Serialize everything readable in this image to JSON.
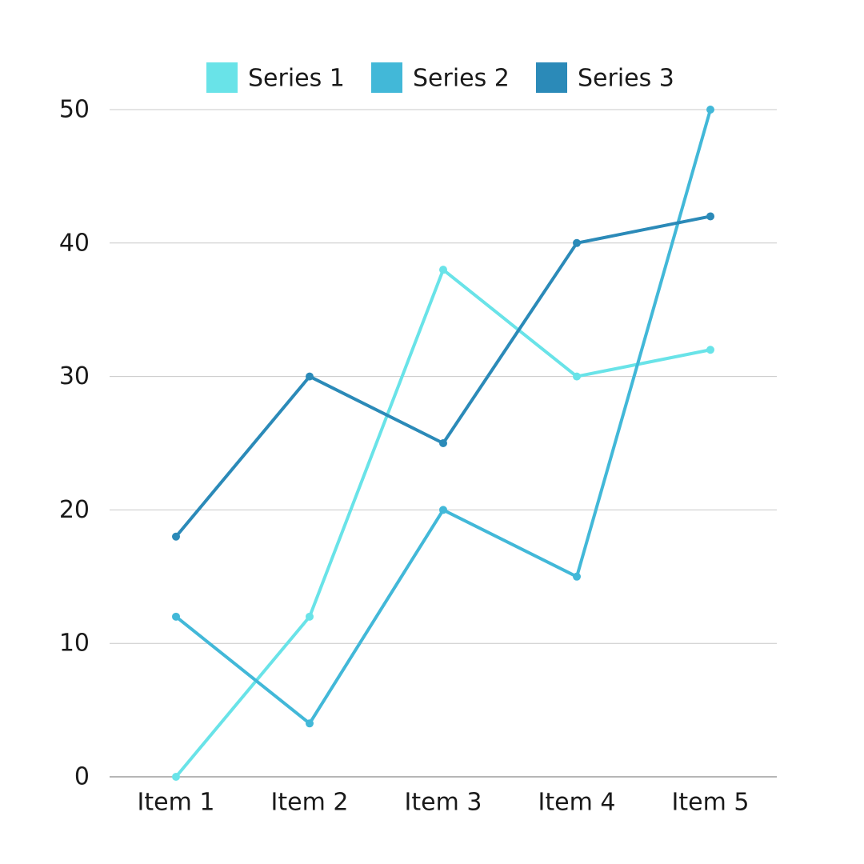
{
  "chart_data": {
    "type": "line",
    "categories": [
      "Item 1",
      "Item 2",
      "Item 3",
      "Item 4",
      "Item 5"
    ],
    "series": [
      {
        "name": "Series 1",
        "color": "#69e3e8",
        "values": [
          0,
          12,
          38,
          30,
          32
        ]
      },
      {
        "name": "Series 2",
        "color": "#42b8d8",
        "values": [
          12,
          4,
          20,
          15,
          50
        ]
      },
      {
        "name": "Series 3",
        "color": "#2b8ab8",
        "values": [
          18,
          30,
          25,
          40,
          42
        ]
      }
    ],
    "y_ticks": [
      0,
      10,
      20,
      30,
      40,
      50
    ],
    "ylim": [
      0,
      50
    ],
    "grid": true,
    "legend_position": "top-center",
    "colors": {
      "grid": "#c8c8c8",
      "axis": "#8a8a8a",
      "text": "#1a1a1a"
    }
  }
}
